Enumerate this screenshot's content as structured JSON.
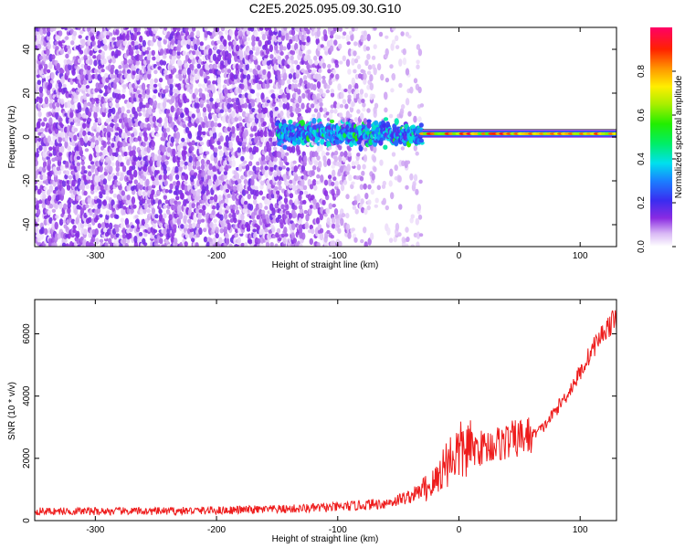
{
  "title": "C2E5.2025.095.09.30.G10",
  "colors": {
    "snr_line": "#ee1c1c",
    "axis": "#000000",
    "background": "#ffffff"
  },
  "chart_data": [
    {
      "type": "heatmap",
      "xlabel": "Height of straight line (km)",
      "ylabel": "Frequency (Hz)",
      "xlim": [
        -350,
        130
      ],
      "ylim": [
        -50,
        50
      ],
      "xticks": [
        -300,
        -200,
        -100,
        0,
        100
      ],
      "yticks": [
        -40,
        -20,
        0,
        20,
        40
      ],
      "colorbar": {
        "label": "Normalized spectral amplitude",
        "range": [
          0.0,
          1.0
        ],
        "ticks": [
          0.0,
          0.2,
          0.4,
          0.6,
          0.8
        ],
        "colormap": "rainbow-white-to-purple-to-red"
      },
      "features": {
        "noise_region_x": [
          -350,
          -150
        ],
        "transition_region_x": [
          -150,
          -30
        ],
        "tone_frequency_hz": 1.5,
        "tone_region_x": [
          -30,
          130
        ],
        "tone_peak_amplitude": 0.95
      }
    },
    {
      "type": "line",
      "xlabel": "Height of straight line (km)",
      "ylabel": "SNR (10 * v/v)",
      "xlim": [
        -350,
        130
      ],
      "ylim": [
        0,
        7100
      ],
      "xticks": [
        -300,
        -200,
        -100,
        0,
        100
      ],
      "yticks": [
        0,
        2000,
        4000,
        6000
      ],
      "series": [
        {
          "x": [
            -350,
            -300,
            -250,
            -200,
            -150,
            -100,
            -60,
            -40,
            -20,
            -12,
            -5,
            0,
            10,
            20,
            40,
            60,
            70,
            80,
            90,
            100,
            110,
            120,
            130
          ],
          "values": [
            300,
            300,
            300,
            330,
            360,
            430,
            560,
            780,
            1200,
            1800,
            2100,
            2200,
            2300,
            2350,
            2550,
            2750,
            3000,
            3550,
            4100,
            4750,
            5500,
            6100,
            6500
          ]
        }
      ]
    }
  ]
}
